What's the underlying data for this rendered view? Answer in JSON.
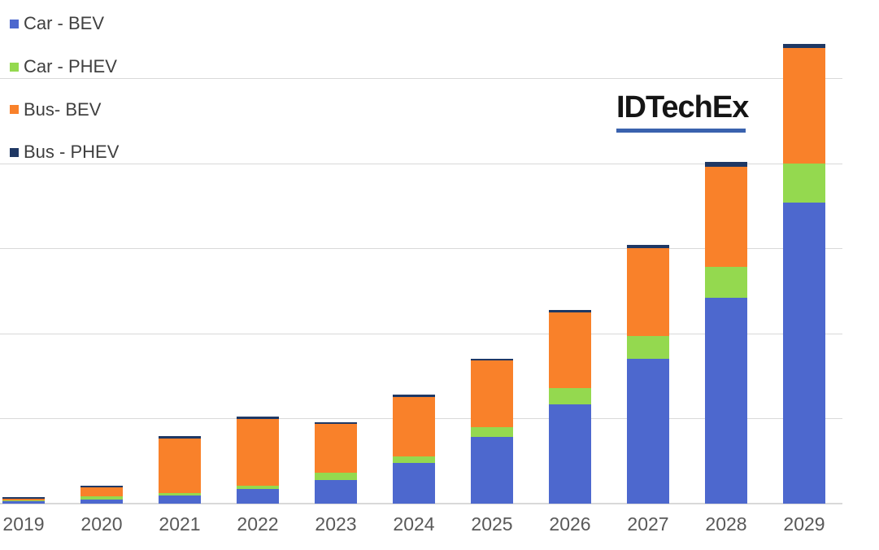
{
  "logo": {
    "text": "IDTechEx",
    "underline_color": "#3a62ae"
  },
  "legend": {
    "position": "top-left",
    "items": [
      {
        "label": "Car - BEV",
        "color": "#4d68ce"
      },
      {
        "label": "Car - PHEV",
        "color": "#94d94f"
      },
      {
        "label": "Bus- BEV",
        "color": "#f9812a"
      },
      {
        "label": "Bus - PHEV",
        "color": "#1f3864"
      }
    ]
  },
  "colors": {
    "car_bev": "#4d68ce",
    "car_phev": "#94d94f",
    "bus_bev": "#f9812a",
    "bus_phev": "#1f3864",
    "gridline": "#d9d9d9",
    "axis_label": "#595959",
    "legend_text": "#404040"
  },
  "chart_data": {
    "type": "bar",
    "stacked": true,
    "title": "",
    "xlabel": "",
    "ylabel": "",
    "categories": [
      "2019",
      "2020",
      "2021",
      "2022",
      "2023",
      "2024",
      "2025",
      "2026",
      "2027",
      "2028",
      "2029"
    ],
    "series": [
      {
        "name": "Car - BEV",
        "color": "#4d68ce",
        "values": [
          0.02,
          0.045,
          0.09,
          0.17,
          0.27,
          0.47,
          0.78,
          1.16,
          1.7,
          2.42,
          3.54
        ]
      },
      {
        "name": "Car - PHEV",
        "color": "#94d94f",
        "values": [
          0.01,
          0.04,
          0.03,
          0.035,
          0.085,
          0.085,
          0.115,
          0.19,
          0.27,
          0.36,
          0.46
        ]
      },
      {
        "name": "Bus- BEV",
        "color": "#f9812a",
        "values": [
          0.025,
          0.1,
          0.64,
          0.79,
          0.58,
          0.69,
          0.78,
          0.89,
          1.03,
          1.18,
          1.35
        ]
      },
      {
        "name": "Bus - PHEV",
        "color": "#1f3864",
        "values": [
          0.02,
          0.025,
          0.03,
          0.02,
          0.02,
          0.03,
          0.025,
          0.03,
          0.035,
          0.05,
          0.05
        ]
      }
    ],
    "stack_totals": [
      0.075,
      0.21,
      0.79,
      1.015,
      0.955,
      1.275,
      1.7,
      2.27,
      3.035,
      4.01,
      5.4
    ],
    "ylim": [
      0,
      5.5
    ],
    "ytick_interval": 1,
    "y_axis_tick_labels_visible": false,
    "value_units": "gridline units (no numeric y-axis labels shown in image)",
    "grid": true,
    "legend_position": "top-left",
    "legend_entries": [
      "Car - BEV",
      "Car - PHEV",
      "Bus- BEV",
      "Bus - PHEV"
    ],
    "watermark": "IDTechEx"
  }
}
